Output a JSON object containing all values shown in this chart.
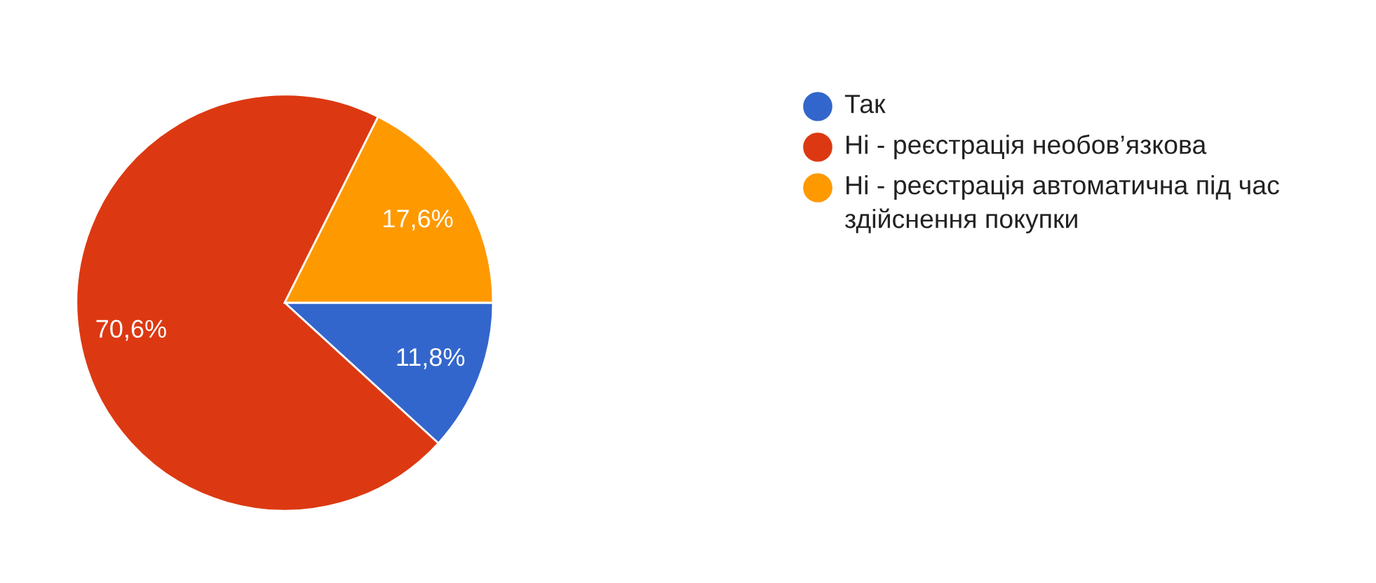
{
  "chart_data": {
    "type": "pie",
    "categories": [
      "Так",
      "Ні - реєстрація необов’язкова",
      "Ні - реєстрація автоматична під час здійснення покупки"
    ],
    "values": [
      11.8,
      70.6,
      17.6
    ],
    "colors": [
      "#3366cc",
      "#dc3912",
      "#ff9900"
    ],
    "value_labels": [
      "11,8%",
      "70,6%",
      "17,6%"
    ],
    "legend": "right"
  }
}
